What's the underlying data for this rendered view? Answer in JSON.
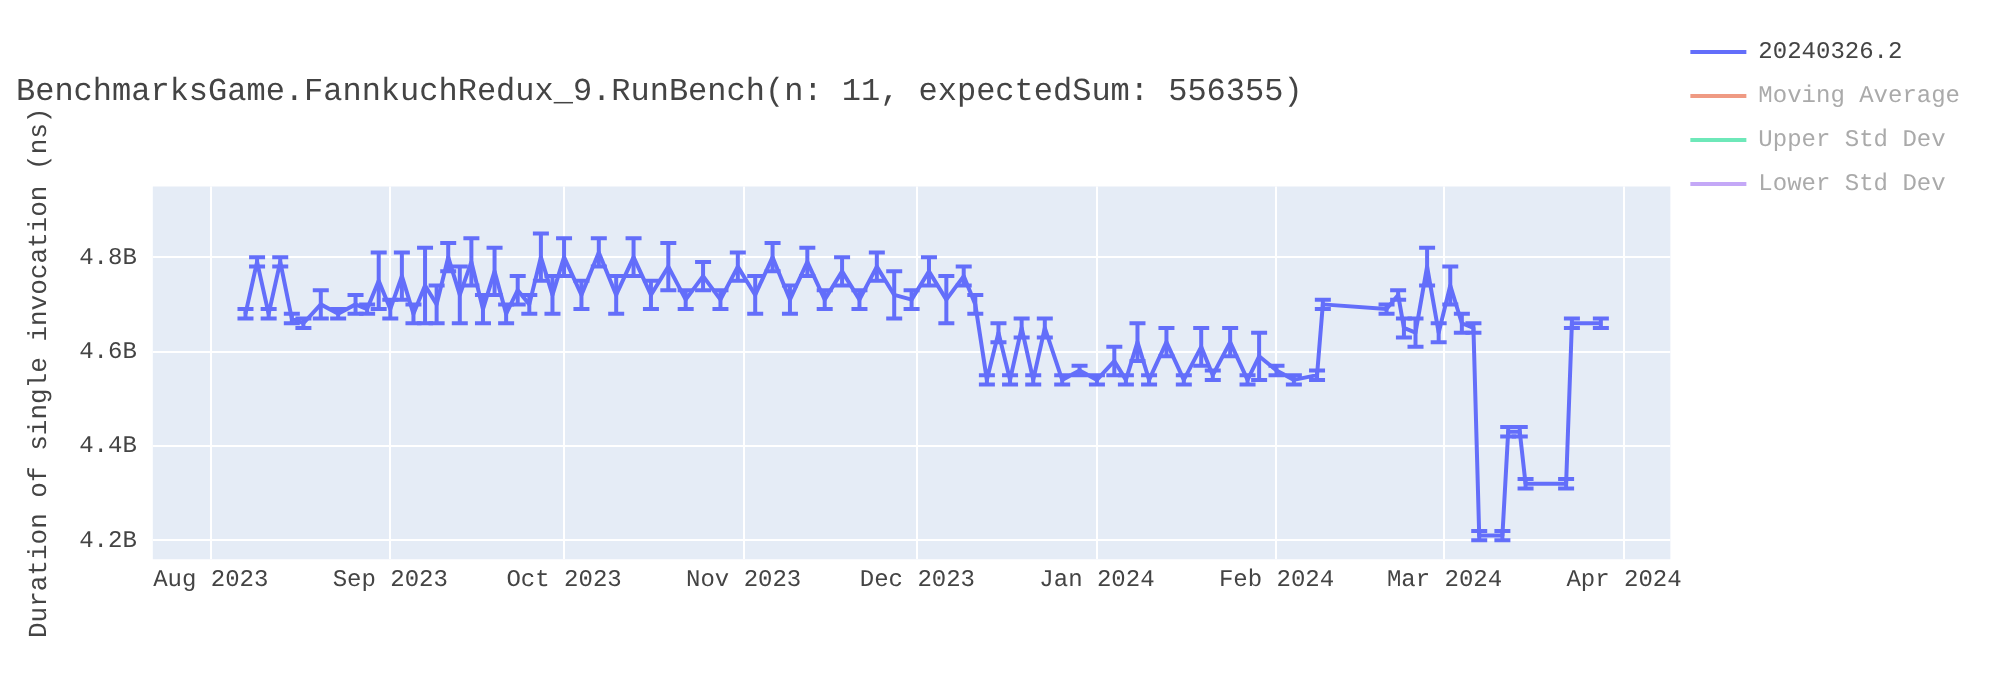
{
  "chart_data": {
    "type": "line",
    "title": "BenchmarksGame.FannkuchRedux_9.RunBench(n: 11, expectedSum: 556355)",
    "ylabel": "Duration of single invocation (ns)",
    "legend": "right",
    "grid": true,
    "line_style": "solid",
    "xlim": [
      "2023-07-22",
      "2024-04-09"
    ],
    "ylim": [
      4160000000,
      4950000000
    ],
    "xticks": [
      {
        "value": "2023-08-01",
        "label": "Aug 2023"
      },
      {
        "value": "2023-09-01",
        "label": "Sep 2023"
      },
      {
        "value": "2023-10-01",
        "label": "Oct 2023"
      },
      {
        "value": "2023-11-01",
        "label": "Nov 2023"
      },
      {
        "value": "2023-12-01",
        "label": "Dec 2023"
      },
      {
        "value": "2024-01-01",
        "label": "Jan 2024"
      },
      {
        "value": "2024-02-01",
        "label": "Feb 2024"
      },
      {
        "value": "2024-03-01",
        "label": "Mar 2024"
      },
      {
        "value": "2024-04-01",
        "label": "Apr 2024"
      }
    ],
    "yticks": [
      {
        "value": 4200000000,
        "label": "4.2B"
      },
      {
        "value": 4400000000,
        "label": "4.4B"
      },
      {
        "value": 4600000000,
        "label": "4.6B"
      },
      {
        "value": 4800000000,
        "label": "4.8B"
      }
    ],
    "series": [
      {
        "name": "20240326.2",
        "color": "#636efa",
        "x": [
          "2023-08-07",
          "2023-08-09",
          "2023-08-11",
          "2023-08-13",
          "2023-08-15",
          "2023-08-17",
          "2023-08-20",
          "2023-08-23",
          "2023-08-26",
          "2023-08-28",
          "2023-08-30",
          "2023-09-01",
          "2023-09-03",
          "2023-09-05",
          "2023-09-07",
          "2023-09-09",
          "2023-09-11",
          "2023-09-13",
          "2023-09-15",
          "2023-09-17",
          "2023-09-19",
          "2023-09-21",
          "2023-09-23",
          "2023-09-25",
          "2023-09-27",
          "2023-09-29",
          "2023-10-01",
          "2023-10-04",
          "2023-10-07",
          "2023-10-10",
          "2023-10-13",
          "2023-10-16",
          "2023-10-19",
          "2023-10-22",
          "2023-10-25",
          "2023-10-28",
          "2023-10-31",
          "2023-11-03",
          "2023-11-06",
          "2023-11-09",
          "2023-11-12",
          "2023-11-15",
          "2023-11-18",
          "2023-11-21",
          "2023-11-24",
          "2023-11-27",
          "2023-11-30",
          "2023-12-03",
          "2023-12-06",
          "2023-12-09",
          "2023-12-11",
          "2023-12-13",
          "2023-12-15",
          "2023-12-17",
          "2023-12-19",
          "2023-12-21",
          "2023-12-23",
          "2023-12-26",
          "2023-12-29",
          "2024-01-01",
          "2024-01-04",
          "2024-01-06",
          "2024-01-08",
          "2024-01-10",
          "2024-01-13",
          "2024-01-16",
          "2024-01-19",
          "2024-01-21",
          "2024-01-24",
          "2024-01-27",
          "2024-01-29",
          "2024-02-01",
          "2024-02-04",
          "2024-02-08",
          "2024-02-09",
          "2024-02-20",
          "2024-02-22",
          "2024-02-23",
          "2024-02-25",
          "2024-02-27",
          "2024-02-29",
          "2024-03-02",
          "2024-03-04",
          "2024-03-06",
          "2024-03-07",
          "2024-03-11",
          "2024-03-12",
          "2024-03-14",
          "2024-03-15",
          "2024-03-22",
          "2024-03-23",
          "2024-03-28"
        ],
        "values": [
          4680000000,
          4790000000,
          4680000000,
          4790000000,
          4670000000,
          4660000000,
          4700000000,
          4680000000,
          4700000000,
          4690000000,
          4750000000,
          4690000000,
          4760000000,
          4680000000,
          4740000000,
          4700000000,
          4800000000,
          4720000000,
          4790000000,
          4690000000,
          4770000000,
          4680000000,
          4730000000,
          4700000000,
          4800000000,
          4720000000,
          4800000000,
          4720000000,
          4810000000,
          4720000000,
          4800000000,
          4720000000,
          4780000000,
          4710000000,
          4760000000,
          4710000000,
          4780000000,
          4720000000,
          4800000000,
          4710000000,
          4790000000,
          4710000000,
          4770000000,
          4710000000,
          4780000000,
          4720000000,
          4710000000,
          4770000000,
          4710000000,
          4760000000,
          4700000000,
          4540000000,
          4640000000,
          4540000000,
          4650000000,
          4540000000,
          4650000000,
          4540000000,
          4560000000,
          4540000000,
          4580000000,
          4540000000,
          4620000000,
          4540000000,
          4620000000,
          4540000000,
          4610000000,
          4550000000,
          4620000000,
          4540000000,
          4590000000,
          4560000000,
          4540000000,
          4550000000,
          4700000000,
          4690000000,
          4720000000,
          4650000000,
          4640000000,
          4780000000,
          4640000000,
          4740000000,
          4660000000,
          4650000000,
          4210000000,
          4210000000,
          4430000000,
          4430000000,
          4320000000,
          4320000000,
          4660000000,
          4660000000
        ],
        "errors": [
          10000000,
          10000000,
          10000000,
          10000000,
          10000000,
          10000000,
          30000000,
          10000000,
          20000000,
          10000000,
          60000000,
          20000000,
          50000000,
          20000000,
          80000000,
          40000000,
          30000000,
          60000000,
          50000000,
          30000000,
          50000000,
          20000000,
          30000000,
          20000000,
          50000000,
          40000000,
          40000000,
          30000000,
          30000000,
          40000000,
          40000000,
          30000000,
          50000000,
          20000000,
          30000000,
          20000000,
          30000000,
          40000000,
          30000000,
          30000000,
          30000000,
          20000000,
          30000000,
          20000000,
          30000000,
          50000000,
          20000000,
          30000000,
          50000000,
          20000000,
          20000000,
          10000000,
          20000000,
          10000000,
          20000000,
          10000000,
          20000000,
          10000000,
          10000000,
          10000000,
          30000000,
          10000000,
          40000000,
          10000000,
          30000000,
          10000000,
          40000000,
          10000000,
          30000000,
          10000000,
          50000000,
          10000000,
          10000000,
          10000000,
          10000000,
          10000000,
          10000000,
          20000000,
          30000000,
          40000000,
          20000000,
          40000000,
          20000000,
          10000000,
          10000000,
          10000000,
          10000000,
          10000000,
          10000000,
          10000000,
          10000000,
          10000000
        ]
      },
      {
        "name": "Moving Average",
        "color": "#ef9a83"
      },
      {
        "name": "Upper Std Dev",
        "color": "#6ee8b9"
      },
      {
        "name": "Lower Std Dev",
        "color": "#c4a8f7"
      }
    ]
  }
}
